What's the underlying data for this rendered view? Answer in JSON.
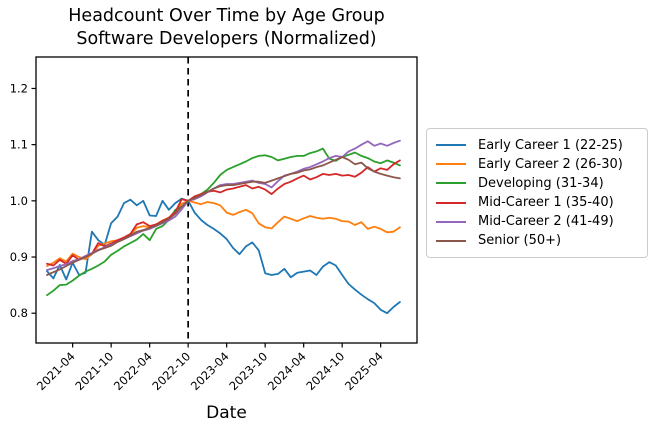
{
  "chart_data": {
    "type": "line",
    "title": "Headcount Over Time by Age Group",
    "subtitle": "Software Developers (Normalized)",
    "xlabel": "Date",
    "ylabel": "",
    "grid": false,
    "legend_position": "outside-right",
    "ylim": [
      0.747,
      1.256
    ],
    "y_tick_labels": [
      "0.8",
      "0.9",
      "1.0",
      "1.1",
      "1.2"
    ],
    "x_tick_labels": [
      "2021-04",
      "2021-10",
      "2022-04",
      "2022-10",
      "2023-04",
      "2023-10",
      "2024-04",
      "2024-10",
      "2025-04"
    ],
    "vline": {
      "x": "2022-10",
      "style": "dashed",
      "color": "#000000"
    },
    "x": [
      "2020-12",
      "2021-01",
      "2021-02",
      "2021-03",
      "2021-04",
      "2021-05",
      "2021-06",
      "2021-07",
      "2021-08",
      "2021-09",
      "2021-10",
      "2021-11",
      "2021-12",
      "2022-01",
      "2022-02",
      "2022-03",
      "2022-04",
      "2022-05",
      "2022-06",
      "2022-07",
      "2022-08",
      "2022-09",
      "2022-10",
      "2022-11",
      "2022-12",
      "2023-01",
      "2023-02",
      "2023-03",
      "2023-04",
      "2023-05",
      "2023-06",
      "2023-07",
      "2023-08",
      "2023-09",
      "2023-10",
      "2023-11",
      "2023-12",
      "2024-01",
      "2024-02",
      "2024-03",
      "2024-04",
      "2024-05",
      "2024-06",
      "2024-07",
      "2024-08",
      "2024-09",
      "2024-10",
      "2024-11",
      "2024-12",
      "2025-01",
      "2025-02",
      "2025-03",
      "2025-04",
      "2025-05",
      "2025-06",
      "2025-07"
    ],
    "series": [
      {
        "name": "Early Career 1 (22-25)",
        "color": "#1f77b4",
        "values": [
          0.875,
          0.862,
          0.886,
          0.86,
          0.89,
          0.868,
          0.872,
          0.945,
          0.93,
          0.922,
          0.96,
          0.972,
          0.996,
          1.002,
          0.992,
          1.0,
          0.974,
          0.973,
          1.0,
          0.984,
          0.996,
          1.004,
          1.0,
          0.979,
          0.966,
          0.957,
          0.95,
          0.942,
          0.932,
          0.916,
          0.905,
          0.919,
          0.926,
          0.912,
          0.871,
          0.868,
          0.87,
          0.879,
          0.864,
          0.872,
          0.874,
          0.876,
          0.868,
          0.883,
          0.891,
          0.885,
          0.868,
          0.852,
          0.842,
          0.833,
          0.825,
          0.818,
          0.806,
          0.8,
          0.811,
          0.82
        ]
      },
      {
        "name": "Early Career 2 (26-30)",
        "color": "#ff7f0e",
        "values": [
          0.884,
          0.89,
          0.898,
          0.892,
          0.906,
          0.9,
          0.896,
          0.905,
          0.92,
          0.924,
          0.928,
          0.93,
          0.934,
          0.94,
          0.952,
          0.955,
          0.953,
          0.958,
          0.965,
          0.97,
          0.982,
          0.995,
          1.0,
          0.997,
          0.994,
          0.998,
          0.996,
          0.992,
          0.979,
          0.975,
          0.98,
          0.984,
          0.978,
          0.96,
          0.953,
          0.951,
          0.962,
          0.972,
          0.968,
          0.964,
          0.969,
          0.973,
          0.97,
          0.968,
          0.97,
          0.968,
          0.964,
          0.963,
          0.957,
          0.962,
          0.95,
          0.954,
          0.95,
          0.944,
          0.945,
          0.953
        ]
      },
      {
        "name": "Developing (31-34)",
        "color": "#2ca02c",
        "values": [
          0.832,
          0.84,
          0.85,
          0.851,
          0.858,
          0.867,
          0.874,
          0.879,
          0.885,
          0.892,
          0.904,
          0.911,
          0.919,
          0.925,
          0.931,
          0.941,
          0.93,
          0.95,
          0.955,
          0.966,
          0.984,
          0.99,
          1.0,
          1.005,
          1.012,
          1.02,
          1.032,
          1.046,
          1.055,
          1.06,
          1.065,
          1.07,
          1.076,
          1.08,
          1.081,
          1.078,
          1.072,
          1.075,
          1.078,
          1.08,
          1.08,
          1.085,
          1.088,
          1.093,
          1.075,
          1.071,
          1.078,
          1.082,
          1.086,
          1.08,
          1.076,
          1.07,
          1.067,
          1.072,
          1.068,
          1.063
        ]
      },
      {
        "name": "Mid-Career 1 (35-40)",
        "color": "#d62728",
        "values": [
          0.888,
          0.885,
          0.895,
          0.888,
          0.903,
          0.895,
          0.9,
          0.906,
          0.925,
          0.919,
          0.924,
          0.93,
          0.935,
          0.941,
          0.958,
          0.962,
          0.955,
          0.958,
          0.964,
          0.97,
          0.98,
          1.003,
          1.0,
          1.008,
          1.012,
          1.016,
          1.018,
          1.015,
          1.02,
          1.022,
          1.025,
          1.028,
          1.022,
          1.025,
          1.02,
          1.012,
          1.022,
          1.03,
          1.034,
          1.04,
          1.045,
          1.038,
          1.042,
          1.048,
          1.046,
          1.048,
          1.045,
          1.046,
          1.043,
          1.05,
          1.06,
          1.052,
          1.058,
          1.055,
          1.065,
          1.072
        ]
      },
      {
        "name": "Mid-Career 2 (41-49)",
        "color": "#9467bd",
        "values": [
          0.877,
          0.88,
          0.884,
          0.887,
          0.893,
          0.896,
          0.902,
          0.907,
          0.913,
          0.917,
          0.922,
          0.927,
          0.932,
          0.937,
          0.942,
          0.947,
          0.95,
          0.955,
          0.96,
          0.965,
          0.972,
          0.985,
          1.0,
          1.003,
          1.008,
          1.015,
          1.022,
          1.028,
          1.03,
          1.03,
          1.032,
          1.034,
          1.036,
          1.032,
          1.03,
          1.024,
          1.035,
          1.045,
          1.048,
          1.052,
          1.057,
          1.06,
          1.065,
          1.07,
          1.076,
          1.08,
          1.078,
          1.088,
          1.093,
          1.1,
          1.106,
          1.098,
          1.102,
          1.098,
          1.103,
          1.107
        ]
      },
      {
        "name": "Senior (50+)",
        "color": "#8c564b",
        "values": [
          0.868,
          0.873,
          0.878,
          0.884,
          0.89,
          0.895,
          0.9,
          0.906,
          0.912,
          0.916,
          0.92,
          0.927,
          0.932,
          0.938,
          0.945,
          0.948,
          0.952,
          0.956,
          0.962,
          0.968,
          0.977,
          0.99,
          1.0,
          1.005,
          1.01,
          1.016,
          1.022,
          1.026,
          1.028,
          1.028,
          1.03,
          1.032,
          1.034,
          1.034,
          1.032,
          1.036,
          1.04,
          1.044,
          1.048,
          1.05,
          1.054,
          1.056,
          1.06,
          1.063,
          1.068,
          1.073,
          1.078,
          1.073,
          1.065,
          1.068,
          1.058,
          1.052,
          1.048,
          1.045,
          1.042,
          1.04
        ]
      }
    ]
  }
}
